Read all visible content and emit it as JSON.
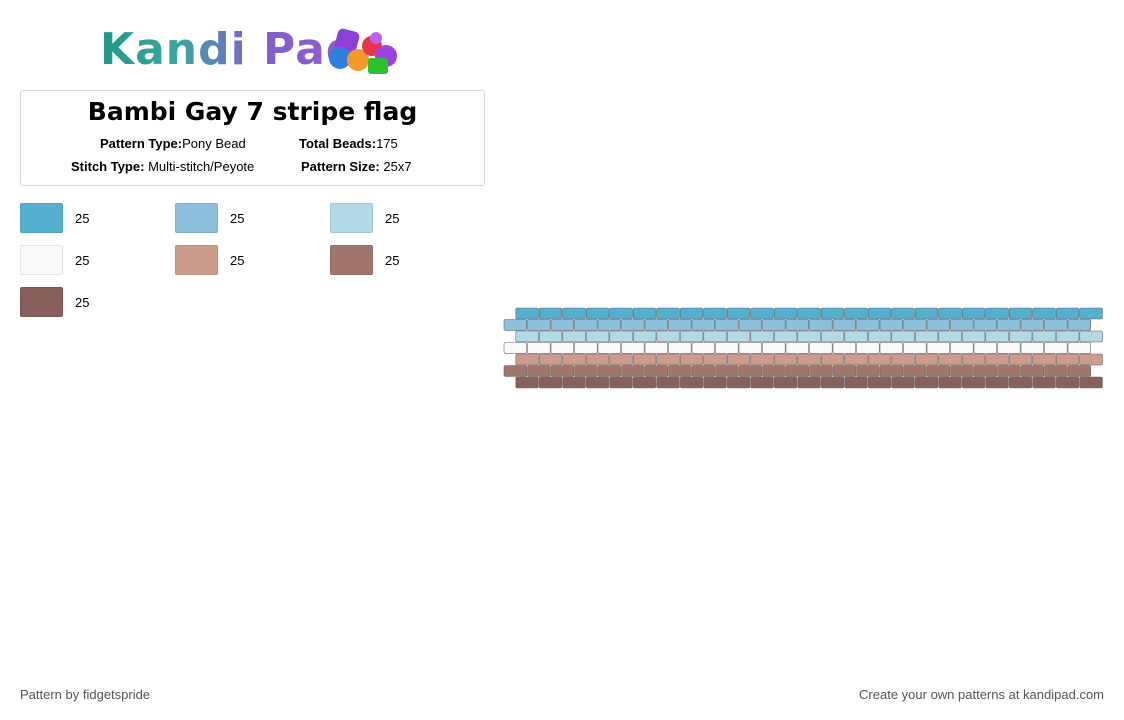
{
  "brand": {
    "name": "Kandi Pad"
  },
  "pattern": {
    "title": "Bambi Gay 7 stripe flag",
    "type_label": "Pattern Type:",
    "type_value": "Pony Bead",
    "beads_label": "Total Beads:",
    "beads_value": "175",
    "stitch_label": "Stitch Type:",
    "stitch_value": "Multi-stitch/Peyote",
    "size_label": "Pattern Size:",
    "size_value": "25x7"
  },
  "colors": [
    {
      "hex": "#55b0d0",
      "count": "25"
    },
    {
      "hex": "#8bbfdc",
      "count": "25"
    },
    {
      "hex": "#b1d9e6",
      "count": "25"
    },
    {
      "hex": "#f9f9f9",
      "count": "25"
    },
    {
      "hex": "#cb9b8b",
      "count": "25"
    },
    {
      "hex": "#a1756c",
      "count": "25"
    },
    {
      "hex": "#875f5c",
      "count": "25"
    }
  ],
  "grid": {
    "columns": 25,
    "rows": 7
  },
  "footer": {
    "credit": "Pattern by fidgetspride",
    "cta": "Create your own patterns at kandipad.com"
  }
}
